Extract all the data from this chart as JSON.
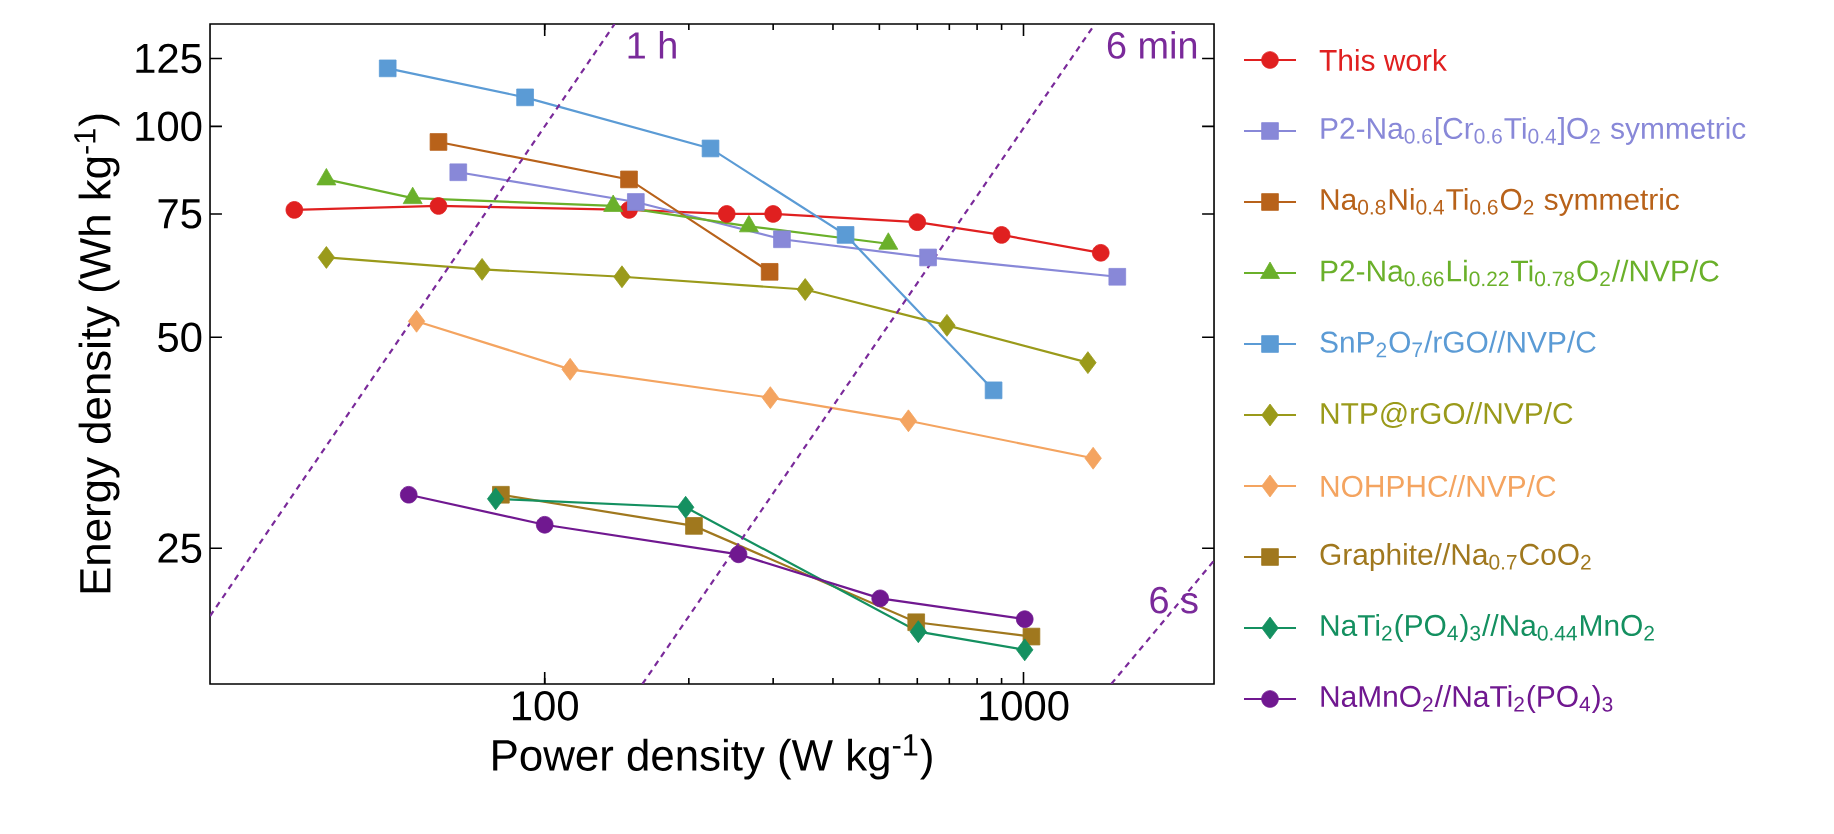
{
  "chart_data": {
    "type": "line",
    "xlabel": "Power density (W kg$^{-1}$)",
    "ylabel": "Energy density (Wh kg$^{-1}$)",
    "log": "xy",
    "xlim": [
      20,
      2500
    ],
    "ylim": [
      16,
      140
    ],
    "xticks": [
      100,
      1000
    ],
    "yticks": [
      25,
      50,
      75,
      100,
      125
    ],
    "grid": false,
    "legend": "right",
    "series": [
      {
        "name": "This work",
        "color": "#e02020",
        "marker": "circle",
        "x": [
          30,
          60,
          150,
          240,
          300,
          600,
          900,
          1450
        ],
        "values": [
          76,
          77,
          76,
          75,
          75,
          73,
          70,
          66
        ]
      },
      {
        "name": "P2-Na$_{0.6}$[Cr$_{0.6}$Ti$_{0.4}$]O$_{2}$ symmetric",
        "color": "#8888d8",
        "marker": "square",
        "x": [
          66,
          155,
          313,
          632,
          1570
        ],
        "values": [
          86,
          78,
          69,
          65,
          61
        ]
      },
      {
        "name": "Na$_{0.8}$Ni$_{0.4}$Ti$_{0.6}$O$_{2}$ symmetric",
        "color": "#b8621a",
        "marker": "square",
        "x": [
          60,
          150,
          295
        ],
        "values": [
          95,
          84,
          62
        ]
      },
      {
        "name": "P2-Na$_{0.66}$Li$_{0.22}$Ti$_{0.78}$O$_{2}$//NVP/C",
        "color": "#6ab02a",
        "marker": "triangle",
        "x": [
          35,
          53,
          139,
          267,
          522
        ],
        "values": [
          84,
          79,
          77,
          72,
          68
        ]
      },
      {
        "name": "SnP$_{2}$O$_{7}$/rGO//NVP/C",
        "color": "#5b9bd5",
        "marker": "square",
        "x": [
          47,
          91,
          222,
          425,
          866
        ],
        "values": [
          121,
          110,
          93,
          70,
          42
        ]
      },
      {
        "name": "NTP@rGO//NVP/C",
        "color": "#9a9a1a",
        "marker": "diamond",
        "x": [
          35,
          74,
          145,
          350,
          692,
          1363
        ],
        "values": [
          65,
          62.5,
          61,
          58.5,
          52,
          46
        ]
      },
      {
        "name": "NOHPHC//NVP/C",
        "color": "#f4a460",
        "marker": "diamond",
        "x": [
          54,
          113,
          296,
          575,
          1398
        ],
        "values": [
          52.7,
          45,
          41,
          38,
          33.6
        ]
      },
      {
        "name": "Graphite//Na$_{0.7}$CoO$_{2}$",
        "color": "#a0781e",
        "marker": "square",
        "x": [
          81,
          205,
          597,
          1039
        ],
        "values": [
          29.8,
          26.9,
          19.6,
          18.7
        ]
      },
      {
        "name": "NaTi$_{2}$(PO$_{4}$)$_{3}$//Na$_{0.44}$MnO$_{2}$",
        "color": "#149060",
        "marker": "diamond",
        "x": [
          79,
          197,
          603,
          1006
        ],
        "values": [
          29.4,
          28.6,
          19,
          17.9
        ]
      },
      {
        "name": "NaMnO$_{2}$//NaTi$_{2}$(PO$_{4}$)$_{3}$",
        "color": "#701890",
        "marker": "circle",
        "x": [
          52,
          100,
          254,
          502,
          1006
        ],
        "values": [
          29.8,
          27,
          24.5,
          21.2,
          19.8
        ]
      },
      {
        "name": "1 h",
        "color": "#7a2a9a",
        "marker": "none",
        "line_style": "dashed",
        "x": [
          20,
          140
        ],
        "values": [
          20,
          140
        ]
      },
      {
        "name": "6 min",
        "color": "#7a2a9a",
        "marker": "none",
        "line_style": "dashed",
        "x": [
          160,
          1410
        ],
        "values": [
          16,
          140
        ]
      },
      {
        "name": "6 s",
        "color": "#7a2a9a",
        "marker": "none",
        "line_style": "dashed",
        "x": [
          1525,
          2500
        ],
        "values": [
          16,
          24
        ]
      }
    ]
  }
}
